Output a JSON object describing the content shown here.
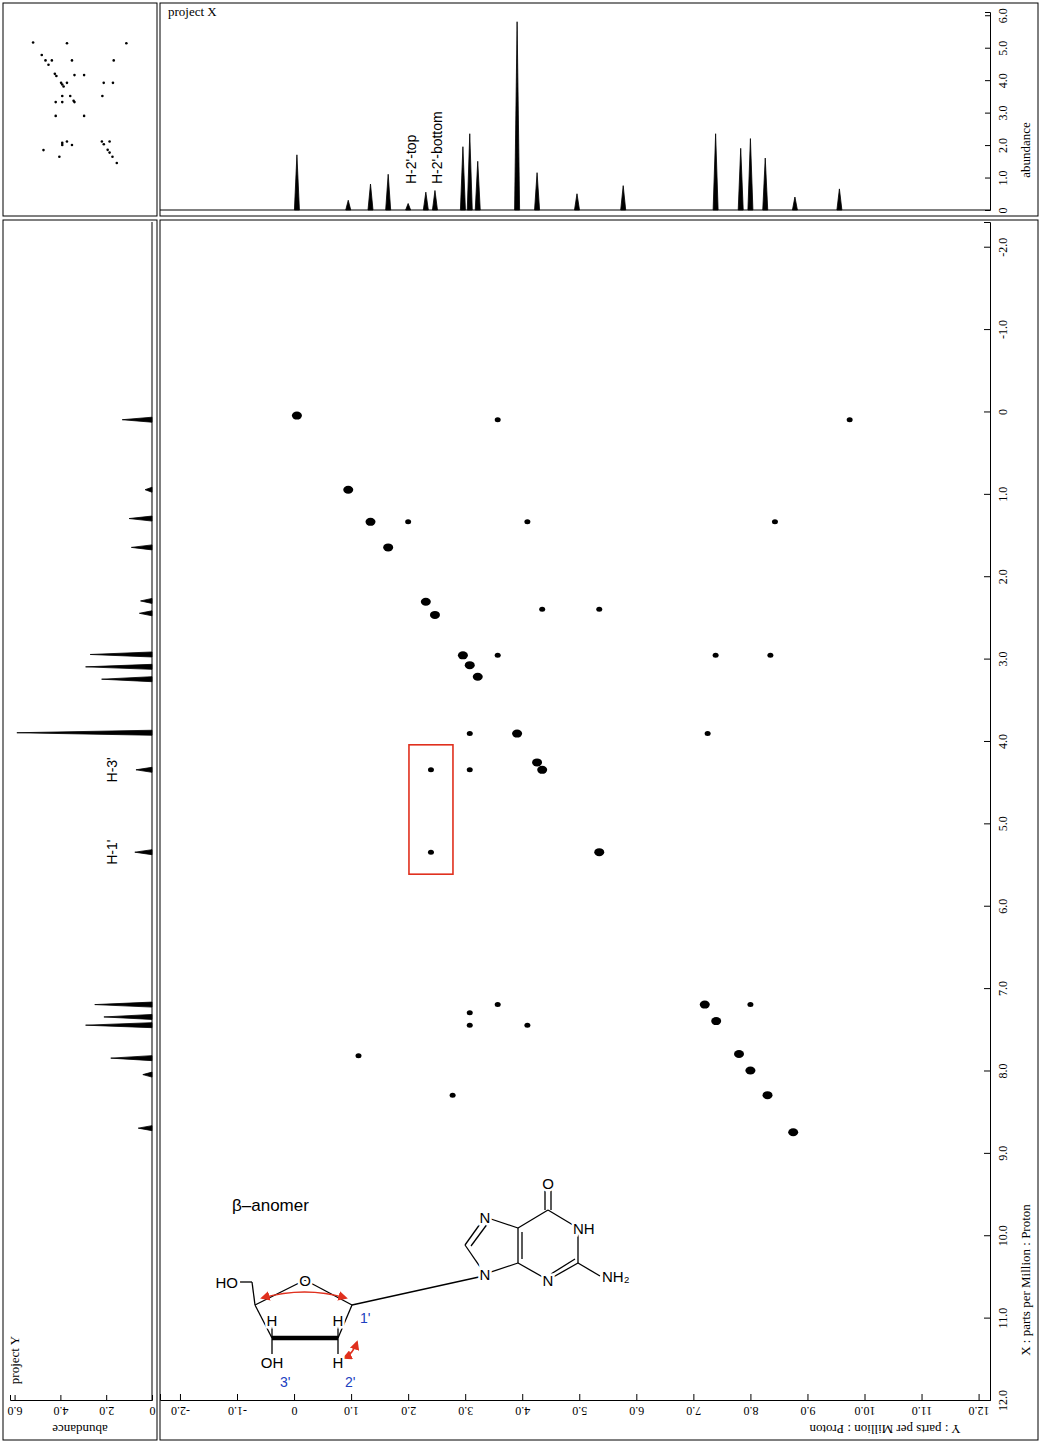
{
  "chart_data": [
    {
      "type": "scatter",
      "x_label": "Y : parts per Million : Proton",
      "y_label": "X : parts per Million : Proton",
      "xlim": [
        -2.35,
        12.2
      ],
      "ylim": [
        -2.3,
        12.0
      ],
      "xticks": [
        {
          "value": -2,
          "label": "-2.0"
        },
        {
          "value": -1,
          "label": "-1.0"
        },
        0,
        {
          "value": 1,
          "label": "1.0"
        },
        {
          "value": 2,
          "label": "2.0"
        },
        {
          "value": 3,
          "label": "3.0"
        },
        {
          "value": 4,
          "label": "4.0"
        },
        {
          "value": 5,
          "label": "5.0"
        },
        {
          "value": 6,
          "label": "6.0"
        },
        {
          "value": 7,
          "label": "7.0"
        },
        {
          "value": 8,
          "label": "8.0"
        },
        {
          "value": 9,
          "label": "9.0"
        },
        {
          "value": 10,
          "label": "10.0"
        },
        {
          "value": 11,
          "label": "11.0"
        },
        {
          "value": 12,
          "label": "12.0"
        }
      ],
      "yticks": [
        {
          "value": -2,
          "label": "-2.0"
        },
        {
          "value": -1,
          "label": "-1.0"
        },
        0,
        {
          "value": 1,
          "label": "1.0"
        },
        {
          "value": 2,
          "label": "2.0"
        },
        {
          "value": 3,
          "label": "3.0"
        },
        {
          "value": 4,
          "label": "4.0"
        },
        {
          "value": 5,
          "label": "5.0"
        },
        {
          "value": 6,
          "label": "6.0"
        },
        {
          "value": 7,
          "label": "7.0"
        },
        {
          "value": 8,
          "label": "8.0"
        },
        {
          "value": 9,
          "label": "9.0"
        },
        {
          "value": 10,
          "label": "10.0"
        },
        {
          "value": 11,
          "label": "11.0"
        },
        {
          "value": 12,
          "label": "12.0"
        }
      ],
      "x": [
        2.4,
        2.4,
        0.05,
        0.95,
        1.34,
        1.65,
        2.31,
        2.47,
        2.96,
        3.08,
        3.22,
        3.91,
        4.26,
        4.35,
        5.35,
        7.2,
        7.4,
        7.8,
        8.0,
        8.3,
        8.75,
        4.35,
        5.35,
        3.57,
        9.74,
        2.0,
        4.09,
        8.43,
        3.57,
        7.39,
        8.35,
        3.08,
        7.25,
        3.08,
        3.57,
        8.0,
        3.08,
        3.08,
        4.09,
        1.13,
        2.78
      ],
      "values": [
        4.35,
        5.35,
        0.05,
        0.95,
        1.34,
        1.65,
        2.31,
        2.47,
        2.96,
        3.08,
        3.22,
        3.91,
        4.26,
        4.35,
        5.35,
        7.2,
        7.4,
        7.8,
        8.0,
        8.3,
        8.75,
        2.4,
        2.4,
        0.1,
        0.1,
        1.34,
        1.34,
        1.34,
        2.96,
        2.96,
        2.96,
        3.91,
        3.91,
        4.35,
        7.2,
        7.2,
        7.3,
        7.45,
        7.45,
        7.82,
        8.3
      ],
      "color": "#000000",
      "marker": "ellipse"
    },
    {
      "type": "spectrum",
      "title": "project X",
      "y_label": "abundance",
      "xlim": [
        -2.35,
        12.2
      ],
      "ylim": [
        0,
        6.1
      ],
      "yticks": [
        0,
        {
          "value": 1,
          "label": "1.0"
        },
        {
          "value": 2,
          "label": "2.0"
        },
        {
          "value": 3,
          "label": "3.0"
        },
        {
          "value": 4,
          "label": "4.0"
        },
        {
          "value": 5,
          "label": "5.0"
        },
        {
          "value": 6,
          "label": "6.0"
        }
      ],
      "tick_labels": "y",
      "x": [
        0.05,
        0.95,
        1.34,
        1.65,
        2.0,
        2.31,
        2.47,
        2.96,
        3.08,
        3.22,
        3.91,
        4.26,
        4.96,
        5.77,
        7.39,
        7.83,
        8.0,
        8.26,
        8.78,
        9.56
      ],
      "values": [
        1.7,
        0.3,
        0.8,
        1.1,
        0.2,
        0.55,
        0.6,
        1.95,
        2.35,
        1.5,
        5.8,
        1.15,
        0.5,
        0.75,
        2.35,
        1.9,
        2.2,
        1.6,
        0.4,
        0.65
      ],
      "color": "#000000",
      "annotations": [
        {
          "text": "H-2'-top",
          "x": 2.05
        },
        {
          "text": "H-2'-bottom",
          "x": 2.5
        }
      ]
    },
    {
      "type": "spectrum",
      "title": "project Y",
      "orientation": "horizontal",
      "y_label": "abundance",
      "xlim": [
        -2.3,
        12.0
      ],
      "ylim": [
        0,
        6.2
      ],
      "yticks": [
        0,
        {
          "value": 2,
          "label": "2.0"
        },
        {
          "value": 4,
          "label": "4.0"
        },
        {
          "value": 6,
          "label": "6.0"
        }
      ],
      "tick_labels": "y",
      "x": [
        0.1,
        0.95,
        1.3,
        1.65,
        2.3,
        2.45,
        2.95,
        3.1,
        3.25,
        3.9,
        4.35,
        5.35,
        7.2,
        7.35,
        7.45,
        7.85,
        8.05,
        8.7
      ],
      "values": [
        1.3,
        0.3,
        1.0,
        0.9,
        0.5,
        0.55,
        2.7,
        2.9,
        2.2,
        5.9,
        0.7,
        0.75,
        2.5,
        2.1,
        2.9,
        1.8,
        0.4,
        0.6
      ],
      "color": "#000000",
      "annotations": [
        {
          "text": "H-3'",
          "x": 4.35
        },
        {
          "text": "H-1'",
          "x": 5.35
        }
      ]
    }
  ],
  "structure": {
    "label": "β–anomer",
    "atoms": [
      "O",
      "N",
      "NH",
      "N",
      "N",
      "NH₂",
      "HO",
      "O",
      "H",
      "H",
      "OH",
      "H"
    ],
    "locants": [
      "1'",
      "2'",
      "3'"
    ]
  }
}
